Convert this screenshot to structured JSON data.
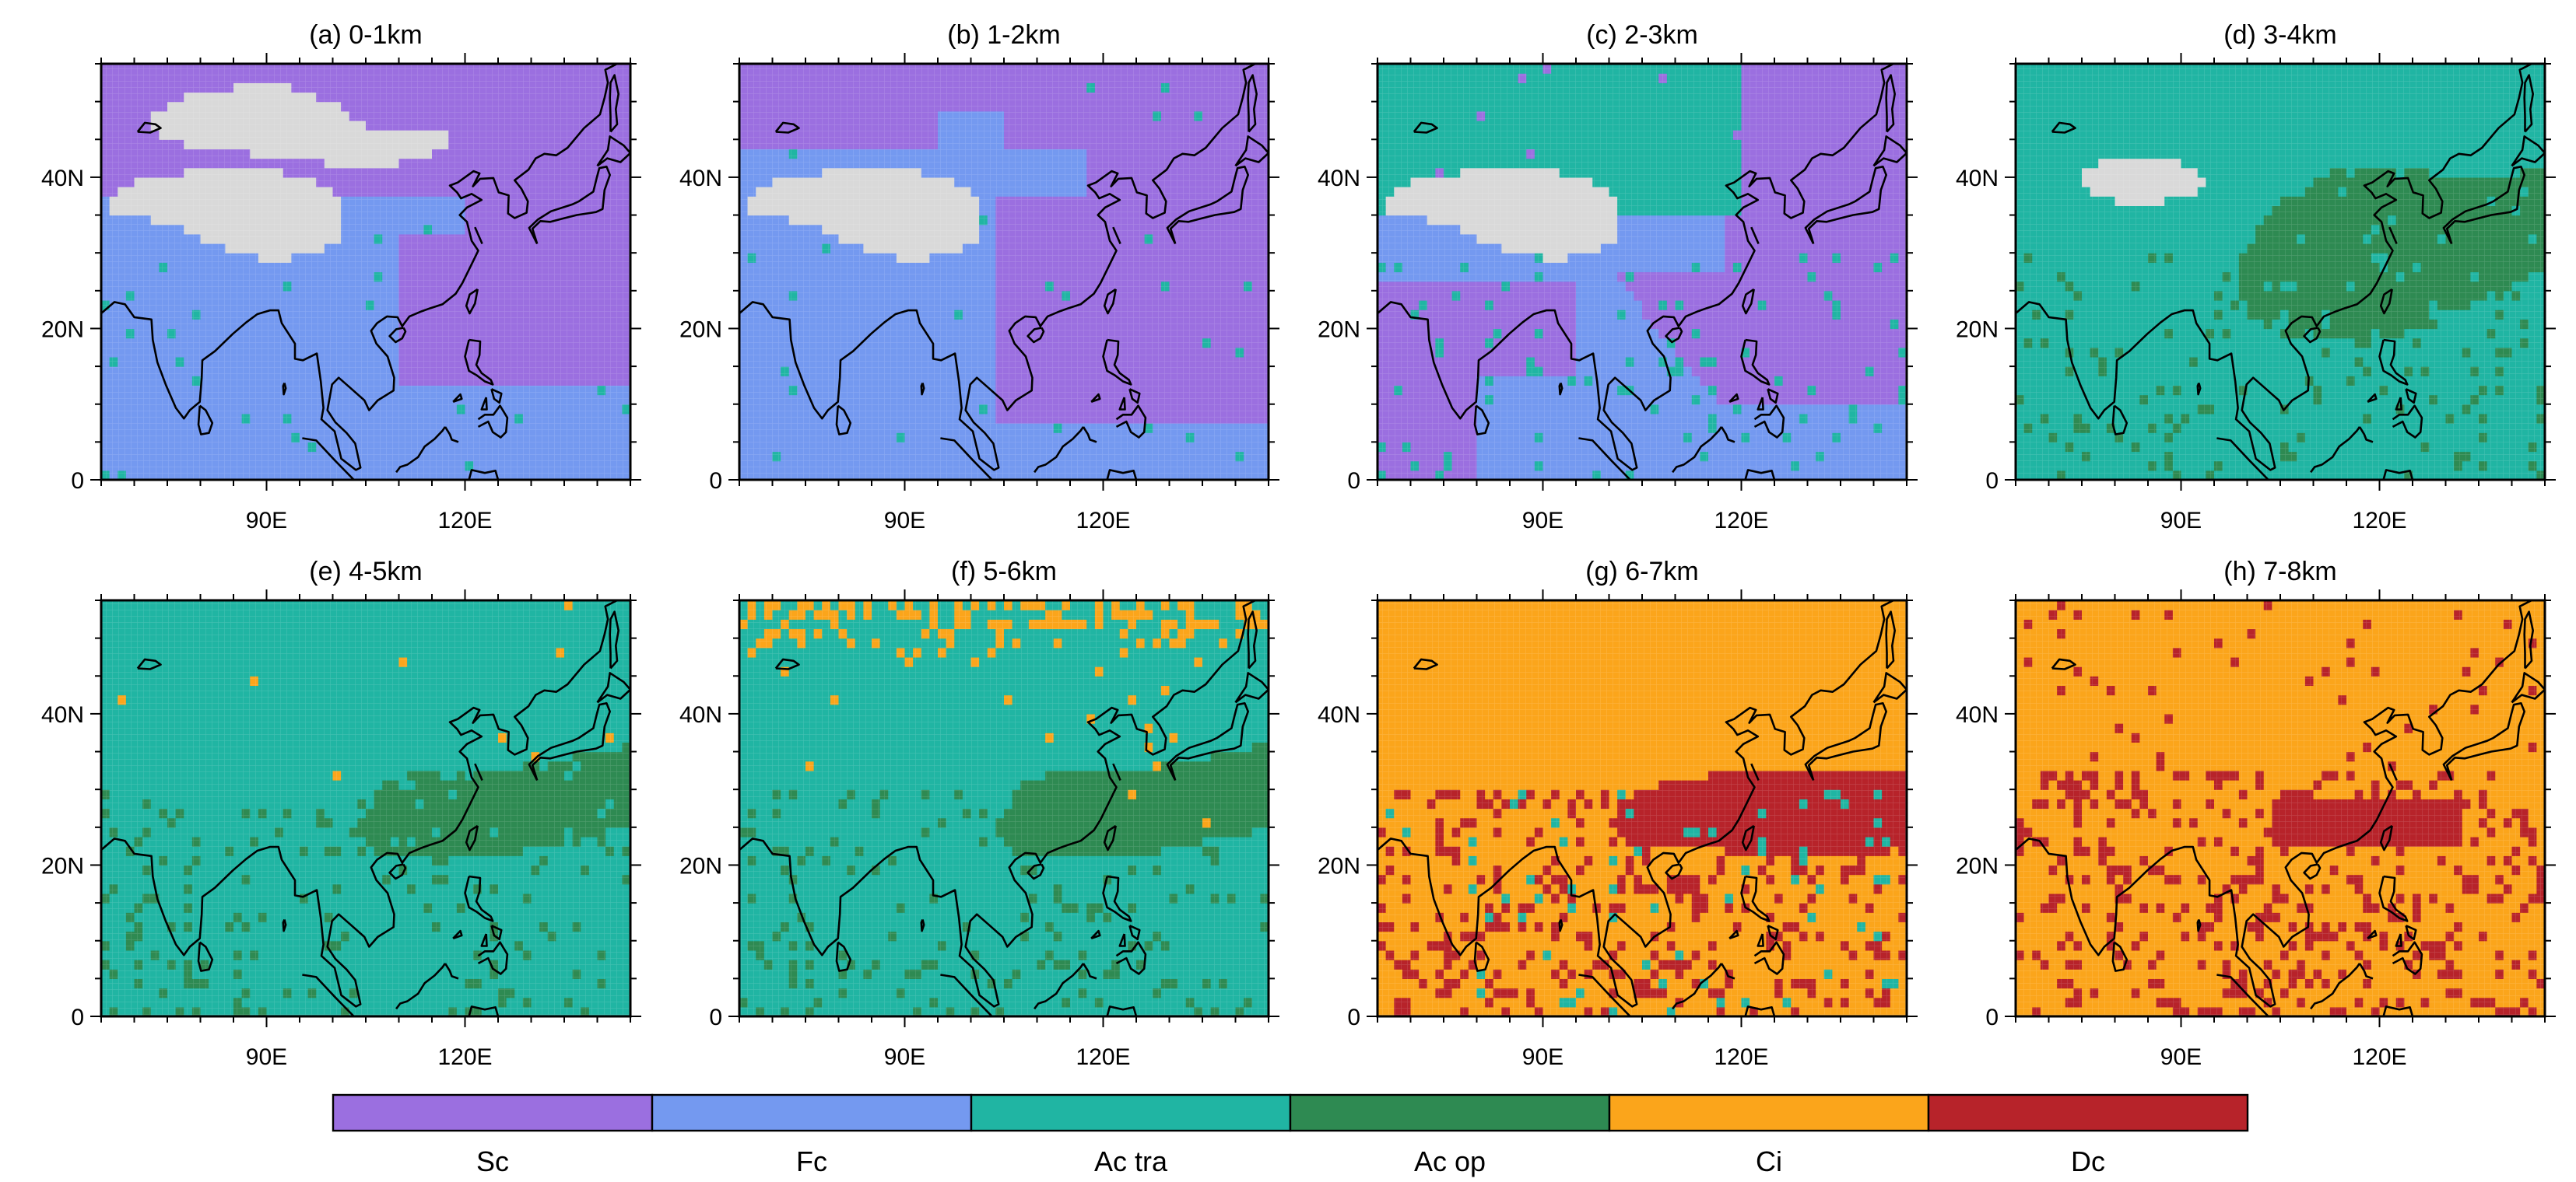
{
  "figure": {
    "panels": [
      {
        "id": "a",
        "title": "(a) 0-1km"
      },
      {
        "id": "b",
        "title": "(b) 1-2km"
      },
      {
        "id": "c",
        "title": "(c) 2-3km"
      },
      {
        "id": "d",
        "title": "(d) 3-4km"
      },
      {
        "id": "e",
        "title": "(e) 4-5km"
      },
      {
        "id": "f",
        "title": "(f) 5-6km"
      },
      {
        "id": "g",
        "title": "(g) 6-7km"
      },
      {
        "id": "h",
        "title": "(h) 7-8km"
      }
    ],
    "axes": {
      "x_ticks": [
        "90E",
        "120E"
      ],
      "y_ticks": [
        "0",
        "20N",
        "40N"
      ]
    },
    "legend": {
      "items": [
        {
          "label": "Sc",
          "color": "#9b6fe0"
        },
        {
          "label": "Fc",
          "color": "#7499f0"
        },
        {
          "label": "Ac tra",
          "color": "#20b5a3"
        },
        {
          "label": "Ac op",
          "color": "#2e8a52"
        },
        {
          "label": "Ci",
          "color": "#fba51b"
        },
        {
          "label": "Dc",
          "color": "#b7232a"
        }
      ]
    },
    "no_data_color": "#d9d9d9"
  }
}
